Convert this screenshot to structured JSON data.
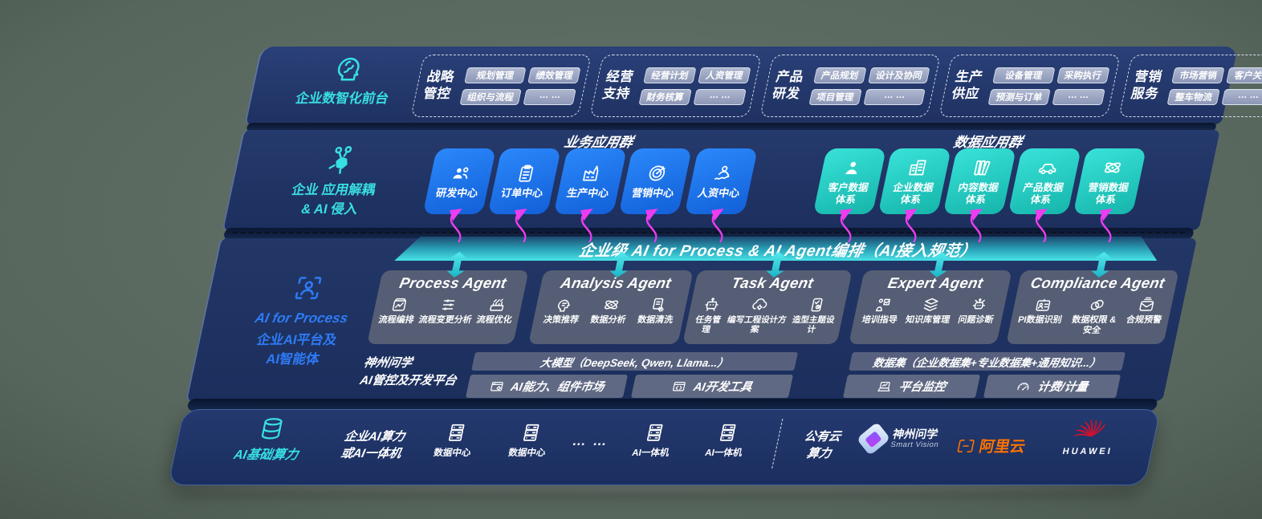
{
  "palette": {
    "background_green": "#57665c",
    "board_navy": "#1d3161",
    "accent_cyan": "#38dfe4",
    "accent_blue": "#2e7bf6",
    "tile_blue": "#1c77f2",
    "tile_teal": "#24d2c8",
    "band_teal": "#3bd9de",
    "arrow_magenta": "#ee3cf0",
    "alicloud_orange": "#ff7300",
    "huawei_red": "#c8102e"
  },
  "front": {
    "label": "企业数智化前台",
    "icon": "brain",
    "groups": [
      {
        "title": "战略管控",
        "items": [
          "规划管理",
          "绩效管理",
          "组织与流程",
          "… …"
        ]
      },
      {
        "title": "经营支持",
        "items": [
          "经营计划",
          "人资管理",
          "财务核算",
          "… …"
        ]
      },
      {
        "title": "产品研发",
        "items": [
          "产品规划",
          "设计及协同",
          "项目管理",
          "… …"
        ]
      },
      {
        "title": "生产供应",
        "items": [
          "设备管理",
          "采购执行",
          "预测与订单",
          "… …"
        ]
      },
      {
        "title": "营销服务",
        "items": [
          "市场营销",
          "客户关系",
          "整车物流",
          "… …"
        ]
      }
    ]
  },
  "apps": {
    "label_lines": [
      "企业 应用解耦",
      "& AI 侵入"
    ],
    "icon": "molecule",
    "business": {
      "header": "业务应用群",
      "tiles": [
        {
          "label": "研发中心",
          "icon": "people"
        },
        {
          "label": "订单中心",
          "icon": "clipboard"
        },
        {
          "label": "生产中心",
          "icon": "factory"
        },
        {
          "label": "营销中心",
          "icon": "target"
        },
        {
          "label": "人资中心",
          "icon": "personwave"
        }
      ]
    },
    "data": {
      "header": "数据应用群",
      "tiles": [
        {
          "label": "客户数据体系",
          "icon": "person"
        },
        {
          "label": "企业数据体系",
          "icon": "building"
        },
        {
          "label": "内容数据体系",
          "icon": "books"
        },
        {
          "label": "产品数据体系",
          "icon": "car"
        },
        {
          "label": "营销数据体系",
          "icon": "atom"
        }
      ]
    }
  },
  "band": {
    "text": "企业级 AI for Process & AI Agent编排（AI接入规范）"
  },
  "agent_layer": {
    "label_lines": [
      "AI for Process",
      "企业AI平台及",
      "AI智能体"
    ],
    "icon": "scanperson",
    "agents": [
      {
        "title": "Process Agent",
        "items": [
          {
            "label": "流程编排",
            "icon": "flow"
          },
          {
            "label": "流程变更分析",
            "icon": "sliders"
          },
          {
            "label": "流程优化",
            "icon": "machine"
          }
        ]
      },
      {
        "title": "Analysis Agent",
        "items": [
          {
            "label": "决策推荐",
            "icon": "headchat"
          },
          {
            "label": "数据分析",
            "icon": "atom"
          },
          {
            "label": "数据清洗",
            "icon": "docclean"
          }
        ]
      },
      {
        "title": "Task Agent",
        "items": [
          {
            "label": "任务管理",
            "icon": "robot"
          },
          {
            "label": "编写工程设计方案",
            "icon": "cloudgear"
          },
          {
            "label": "造型主题设计",
            "icon": "tabletcheck"
          }
        ]
      },
      {
        "title": "Expert Agent",
        "items": [
          {
            "label": "培训指导",
            "icon": "training"
          },
          {
            "label": "知识库管理",
            "icon": "layers"
          },
          {
            "label": "问题诊断",
            "icon": "diagnose"
          }
        ]
      },
      {
        "title": "Compliance Agent",
        "items": [
          {
            "label": "PI数据识别",
            "icon": "idcard"
          },
          {
            "label": "数据权限 & 安全",
            "icon": "rings"
          },
          {
            "label": "合规预警",
            "icon": "mail"
          }
        ]
      }
    ],
    "platform": {
      "label_lines": [
        "神州问学",
        "AI管控及开发平台"
      ],
      "model_bar": "大模型（DeepSeek, Qwen, Llama...）",
      "dataset_bar": "数据集（企业数据集+专业数据集+通用知识...）",
      "cells": [
        {
          "label": "AI能力、组件市场",
          "icon": "wingear"
        },
        {
          "label": "AI开发工具",
          "icon": "wincode"
        },
        {
          "label": "平台监控",
          "icon": "laptop"
        },
        {
          "label": "计费/计量",
          "icon": "gauge"
        }
      ]
    }
  },
  "bottom": {
    "label": "AI基础算力",
    "icon": "db",
    "compute_lines": [
      "企业AI算力",
      "或AI一体机"
    ],
    "nodes": [
      {
        "label": "数据中心",
        "icon": "server"
      },
      {
        "label": "数据中心",
        "icon": "server"
      },
      {
        "label": "AI一体机",
        "icon": "server"
      },
      {
        "label": "AI一体机",
        "icon": "server"
      }
    ],
    "dots": "… …",
    "public_cloud_lines": [
      "公有云",
      "算力"
    ],
    "logos": {
      "smartvision": {
        "name_cn": "神州问学",
        "name_en": "Smart Vision"
      },
      "alicloud": {
        "name": "阿里云"
      },
      "huawei": {
        "name": "HUAWEI"
      }
    }
  }
}
